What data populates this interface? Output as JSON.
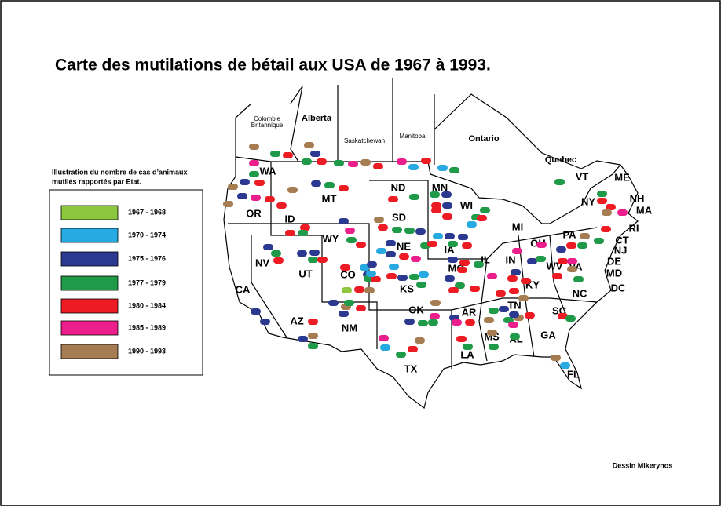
{
  "title": "Carte des mutilations de bétail aux USA de 1967 à 1993.",
  "legend": {
    "title": [
      "Illustration du nombre de cas d’animaux",
      "mutilés rapportés par Etat."
    ],
    "items": [
      {
        "label": "1967 - 1968",
        "color": "#8dc63f"
      },
      {
        "label": "1970 - 1974",
        "color": "#27a9e1"
      },
      {
        "label": "1975 - 1976",
        "color": "#2b3990"
      },
      {
        "label": "1977 - 1979",
        "color": "#1f9a48"
      },
      {
        "label": "1980 - 1984",
        "color": "#ed1c24"
      },
      {
        "label": "1985 - 1989",
        "color": "#ec1e8c"
      },
      {
        "label": "1990 - 1993",
        "color": "#a67c52"
      }
    ]
  },
  "provinces": [
    "Colombie",
    "Britannique",
    "Alberta",
    "Saskatchewan",
    "Manitoba",
    "Ontario",
    "Quebec"
  ],
  "states": [
    "WA",
    "OR",
    "CA",
    "NV",
    "ID",
    "MT",
    "WY",
    "UT",
    "CO",
    "AZ",
    "NM",
    "ND",
    "SD",
    "NE",
    "KS",
    "OK",
    "TX",
    "MN",
    "IA",
    "MO",
    "AR",
    "LA",
    "WI",
    "IL",
    "MS",
    "MI",
    "IN",
    "OH",
    "KY",
    "TN",
    "AL",
    "GA",
    "FL",
    "SC",
    "NC",
    "VA",
    "WV",
    "PA",
    "NY",
    "VT",
    "ME",
    "NH",
    "MA",
    "RI",
    "CT",
    "NJ",
    "DE",
    "MD",
    "DC"
  ],
  "credit": "Dessin Mikerynos"
}
